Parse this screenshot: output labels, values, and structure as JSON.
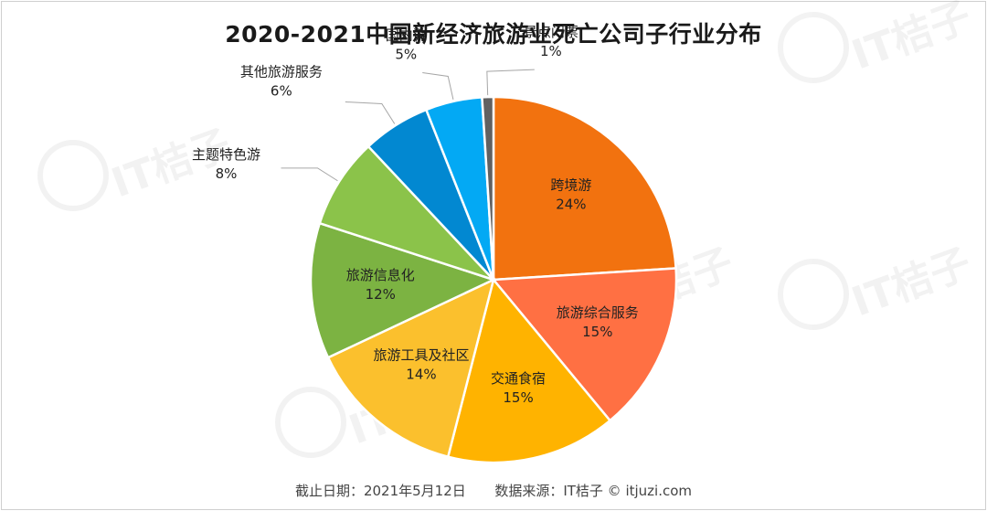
{
  "chart_data": {
    "type": "pie",
    "title": "2020-2021中国新经济旅游业死亡公司子行业分布",
    "slices": [
      {
        "label": "跨境游",
        "value": 24,
        "text": "24%",
        "color": "#F2720F"
      },
      {
        "label": "旅游综合服务",
        "value": 15,
        "text": "15%",
        "color": "#FF7043"
      },
      {
        "label": "交通食宿",
        "value": 15,
        "text": "15%",
        "color": "#FFB300"
      },
      {
        "label": "旅游工具及社区",
        "value": 14,
        "text": "14%",
        "color": "#FBC02D"
      },
      {
        "label": "旅游信息化",
        "value": 12,
        "text": "12%",
        "color": "#7CB342"
      },
      {
        "label": "主题特色游",
        "value": 8,
        "text": "8%",
        "color": "#8BC34A"
      },
      {
        "label": "其他旅游服务",
        "value": 6,
        "text": "6%",
        "color": "#0288D1"
      },
      {
        "label": "国内游",
        "value": 5,
        "text": "5%",
        "color": "#03A9F4"
      },
      {
        "label": "景点门票",
        "value": 1,
        "text": "1%",
        "color": "#616161"
      }
    ]
  },
  "footer": {
    "date": "截止日期：2021年5月12日",
    "source": "数据来源：IT桔子 © itjuzi.com"
  },
  "watermark": "IT桔子"
}
